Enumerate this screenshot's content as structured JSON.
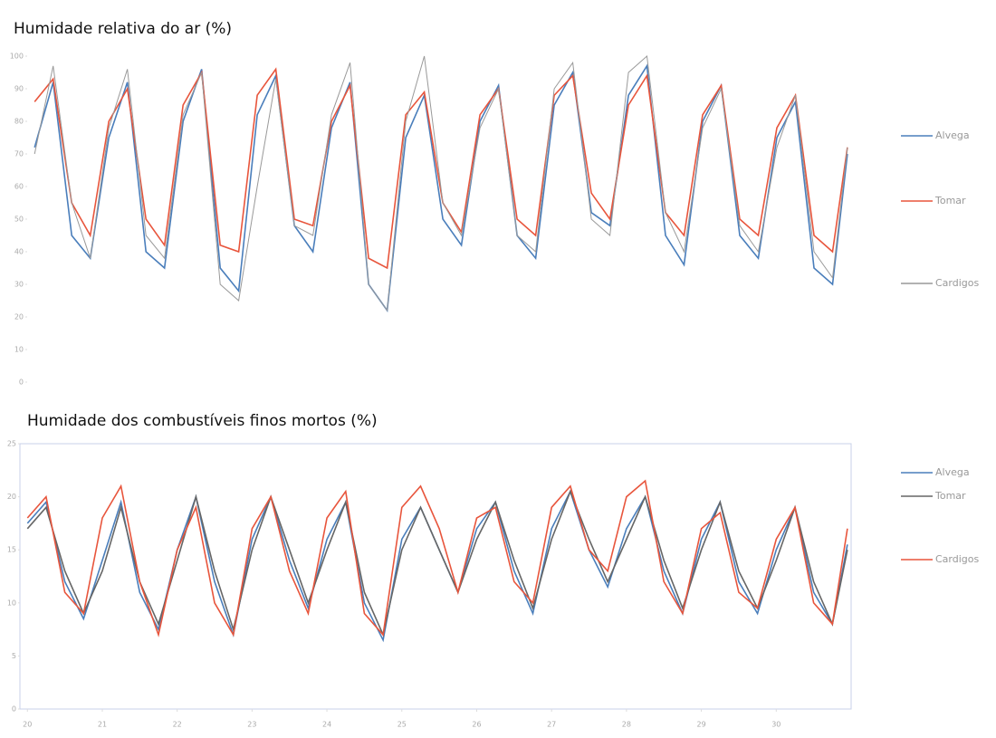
{
  "chart_data": [
    {
      "type": "line",
      "title": "Humidade relativa do ar (%)",
      "x": [
        20,
        20.25,
        20.5,
        20.75,
        21,
        21.25,
        21.5,
        21.75,
        22,
        22.25,
        22.5,
        22.75,
        23,
        23.25,
        23.5,
        23.75,
        24,
        24.25,
        24.5,
        24.75,
        25,
        25.25,
        25.5,
        25.75,
        26,
        26.25,
        26.5,
        26.75,
        27,
        27.25,
        27.5,
        27.75,
        28,
        28.25,
        28.5,
        28.75,
        29,
        29.25,
        29.5,
        29.75,
        30,
        30.25,
        30.5,
        30.75,
        30.95
      ],
      "series": [
        {
          "name": "Alvega",
          "color": "#4a7ebb",
          "values": [
            72,
            92,
            45,
            38,
            75,
            92,
            40,
            35,
            80,
            96,
            35,
            28,
            82,
            94,
            48,
            40,
            78,
            92,
            30,
            22,
            75,
            88,
            50,
            42,
            80,
            91,
            45,
            38,
            85,
            95,
            52,
            48,
            88,
            97,
            45,
            36,
            80,
            91,
            45,
            38,
            75,
            86,
            35,
            30,
            70
          ]
        },
        {
          "name": "Tomar",
          "color": "#e8553c",
          "values": [
            86,
            93,
            55,
            45,
            80,
            90,
            50,
            42,
            85,
            95,
            42,
            40,
            88,
            96,
            50,
            48,
            80,
            91,
            38,
            35,
            82,
            89,
            55,
            46,
            82,
            90,
            50,
            45,
            88,
            94,
            58,
            50,
            85,
            94,
            52,
            45,
            82,
            91,
            50,
            45,
            78,
            88,
            45,
            40,
            72
          ]
        },
        {
          "name": "Cardigos",
          "color": "#999999",
          "values": [
            70,
            97,
            55,
            38,
            78,
            96,
            45,
            38,
            82,
            95,
            30,
            25,
            60,
            93,
            48,
            45,
            82,
            98,
            30,
            22,
            80,
            100,
            55,
            45,
            78,
            90,
            45,
            40,
            90,
            98,
            50,
            45,
            95,
            100,
            52,
            40,
            78,
            90,
            48,
            40,
            72,
            88,
            40,
            32,
            72
          ]
        }
      ],
      "xlim": [
        19.9,
        31
      ],
      "ylim": [
        0,
        100
      ],
      "yticks": [
        0,
        10,
        20,
        30,
        40,
        50,
        60,
        70,
        80,
        90,
        100
      ]
    },
    {
      "type": "line",
      "title": "Humidade dos combustíveis finos mortos (%)",
      "x": [
        20,
        20.25,
        20.5,
        20.75,
        21,
        21.25,
        21.5,
        21.75,
        22,
        22.25,
        22.5,
        22.75,
        23,
        23.25,
        23.5,
        23.75,
        24,
        24.25,
        24.5,
        24.75,
        25,
        25.25,
        25.5,
        25.75,
        26,
        26.25,
        26.5,
        26.75,
        27,
        27.25,
        27.5,
        27.75,
        28,
        28.25,
        28.5,
        28.75,
        29,
        29.25,
        29.5,
        29.75,
        30,
        30.25,
        30.5,
        30.75,
        30.95
      ],
      "series": [
        {
          "name": "Alvega",
          "color": "#4a7ebb",
          "values": [
            17.5,
            19.5,
            12,
            8.5,
            14,
            19.5,
            11,
            7.5,
            15,
            20,
            12,
            7,
            16,
            20,
            14,
            9.5,
            16,
            19.5,
            10,
            6.5,
            16,
            19,
            15,
            11,
            17,
            19.5,
            13,
            9,
            17,
            20.5,
            15,
            11.5,
            17,
            20,
            13,
            9,
            16,
            19.5,
            12,
            9,
            15,
            19,
            11,
            8,
            15.5
          ]
        },
        {
          "name": "Tomar",
          "color": "#666666",
          "values": [
            17,
            19,
            13,
            9,
            13,
            19,
            12,
            8,
            14,
            20,
            13,
            7.5,
            15,
            20,
            15,
            10,
            15,
            19.5,
            11,
            7,
            15,
            19,
            15,
            11,
            16,
            19.5,
            14,
            9.5,
            16,
            20.5,
            16,
            12,
            16,
            20,
            14,
            9.5,
            15,
            19.5,
            13,
            9.5,
            14,
            19,
            12,
            8,
            15
          ]
        },
        {
          "name": "Cardigos",
          "color": "#e8553c",
          "values": [
            18,
            20,
            11,
            9,
            18,
            21,
            12,
            7,
            15,
            19,
            10,
            7,
            17,
            20,
            13,
            9,
            18,
            20.5,
            9,
            7,
            19,
            21,
            17,
            11,
            18,
            19,
            12,
            10,
            19,
            21,
            15,
            13,
            20,
            21.5,
            12,
            9,
            17,
            18.5,
            11,
            9.5,
            16,
            19,
            10,
            8,
            17
          ]
        }
      ],
      "xlim": [
        19.9,
        31
      ],
      "xticks": [
        20,
        21,
        22,
        23,
        24,
        25,
        26,
        27,
        28,
        29,
        30
      ],
      "ylim": [
        0,
        25
      ],
      "yticks": [
        0,
        5,
        10,
        15,
        20,
        25
      ]
    }
  ]
}
